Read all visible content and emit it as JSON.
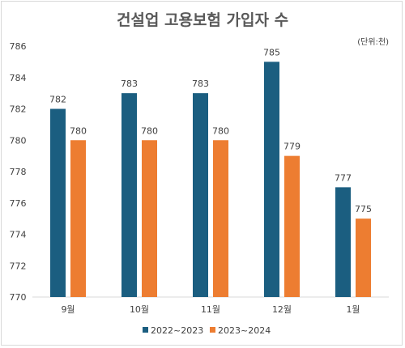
{
  "chart_data": {
    "type": "bar",
    "title": "건설업 고용보험 가입자 수",
    "unit_note": "(단위:천)",
    "categories": [
      "9월",
      "10월",
      "11월",
      "12월",
      "1월"
    ],
    "series": [
      {
        "name": "2022~2023",
        "color": "#1b5e80",
        "values": [
          782,
          783,
          783,
          785,
          777
        ]
      },
      {
        "name": "2023~2024",
        "color": "#ed7d31",
        "values": [
          780,
          780,
          780,
          779,
          775
        ]
      }
    ],
    "ylim": [
      770,
      786
    ],
    "yticks": [
      770,
      772,
      774,
      776,
      778,
      780,
      782,
      784,
      786
    ],
    "grid": false,
    "legend": "bottom"
  }
}
